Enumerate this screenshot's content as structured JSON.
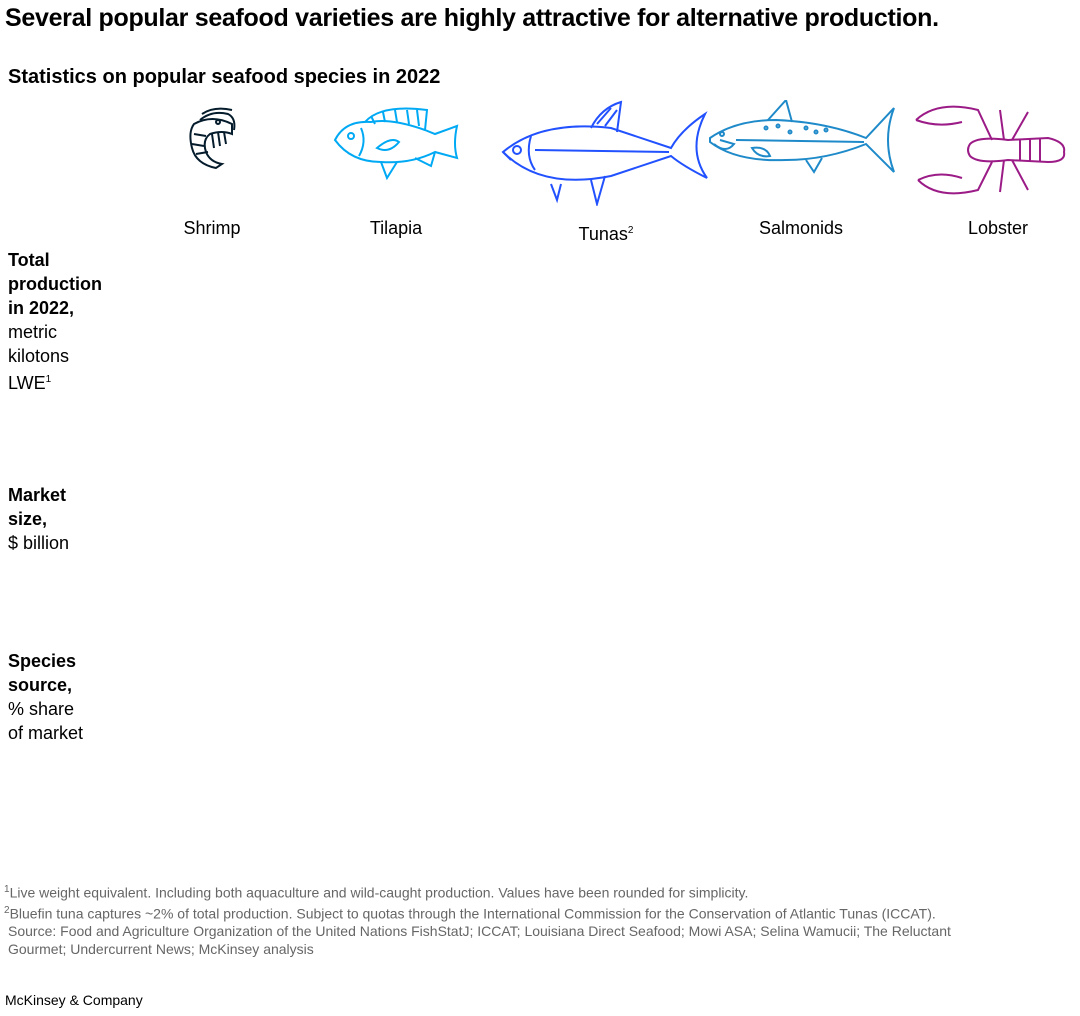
{
  "title": "Several popular seafood varieties are highly attractive for alternative production.",
  "subtitle": "Statistics on popular seafood species in 2022",
  "species": [
    {
      "label": "Shrimp",
      "sup": "",
      "icon": "shrimp-icon",
      "color": "#051c2c"
    },
    {
      "label": "Tilapia",
      "sup": "",
      "icon": "tilapia-icon",
      "color": "#00a9f4"
    },
    {
      "label": "Tunas",
      "sup": "2",
      "icon": "tuna-icon",
      "color": "#2251ff"
    },
    {
      "label": "Salmonids",
      "sup": "",
      "icon": "salmon-icon",
      "color": "#1f8ac9"
    },
    {
      "label": "Lobster",
      "sup": "",
      "icon": "lobster-icon",
      "color": "#9b1b87"
    }
  ],
  "rows": [
    {
      "bold": [
        "Total",
        "production",
        "in 2022,"
      ],
      "normal": [
        "metric",
        "kilotons",
        "LWE"
      ],
      "sup": "1"
    },
    {
      "bold": [
        "Market",
        "size,"
      ],
      "normal": [
        "$ billion"
      ],
      "sup": ""
    },
    {
      "bold": [
        "Species",
        "source,"
      ],
      "normal": [
        "% share",
        "of market"
      ],
      "sup": ""
    }
  ],
  "footnotes": [
    {
      "sup": "1",
      "text": "Live weight equivalent. Including both aquaculture and wild-caught production. Values have been rounded for simplicity."
    },
    {
      "sup": "2",
      "text": "Bluefin tuna captures ~2% of total production. Subject to quotas through the International Commission for the Conservation of Atlantic Tunas (ICCAT)."
    }
  ],
  "source": [
    "Source: Food and Agriculture Organization of the United Nations FishStatJ; ICCAT; Louisiana Direct Seafood; Mowi ASA; Selina Wamucii; The Reluctant",
    "Gourmet; Undercurrent News; McKinsey analysis"
  ],
  "brand": "McKinsey & Company"
}
